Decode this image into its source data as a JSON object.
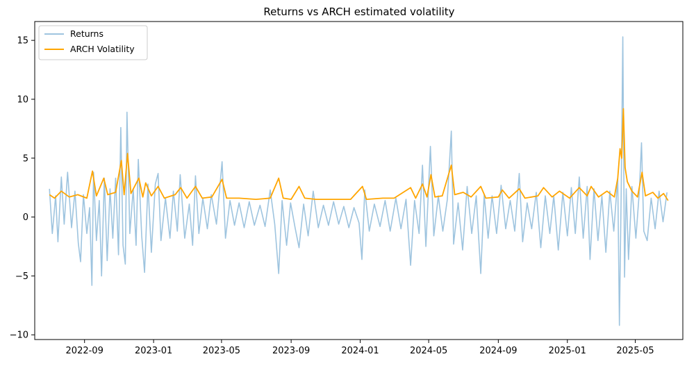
{
  "chart_data": {
    "type": "line",
    "title": "Returns vs ARCH estimated volatility",
    "xlabel": "",
    "ylabel": "",
    "x_range": [
      "2022-06-05",
      "2025-07-24"
    ],
    "ylim": [
      -10.4,
      16.6
    ],
    "grid": false,
    "legend_position": "top-left",
    "y_ticks": [
      -10,
      -5,
      0,
      5,
      10,
      15
    ],
    "x_ticks": [
      {
        "date": "2022-09-01",
        "label": "2022-09"
      },
      {
        "date": "2023-01-01",
        "label": "2023-01"
      },
      {
        "date": "2023-05-01",
        "label": "2023-05"
      },
      {
        "date": "2023-09-01",
        "label": "2023-09"
      },
      {
        "date": "2024-01-01",
        "label": "2024-01"
      },
      {
        "date": "2024-05-01",
        "label": "2024-05"
      },
      {
        "date": "2024-09-01",
        "label": "2024-09"
      },
      {
        "date": "2025-01-01",
        "label": "2025-01"
      },
      {
        "date": "2025-05-01",
        "label": "2025-05"
      }
    ],
    "series": [
      {
        "name": "Returns",
        "color": "#9ec4df",
        "points": [
          [
            "2022-07-01",
            2.4
          ],
          [
            "2022-07-06",
            -1.4
          ],
          [
            "2022-07-12",
            1.8
          ],
          [
            "2022-07-16",
            -2.1
          ],
          [
            "2022-07-22",
            3.4
          ],
          [
            "2022-07-27",
            -0.6
          ],
          [
            "2022-08-02",
            3.8
          ],
          [
            "2022-08-09",
            -0.9
          ],
          [
            "2022-08-15",
            2.2
          ],
          [
            "2022-08-21",
            -2.2
          ],
          [
            "2022-08-25",
            -3.8
          ],
          [
            "2022-08-30",
            1.9
          ],
          [
            "2022-09-05",
            -1.4
          ],
          [
            "2022-09-10",
            0.8
          ],
          [
            "2022-09-14",
            -5.8
          ],
          [
            "2022-09-17",
            3.8
          ],
          [
            "2022-09-22",
            -2.0
          ],
          [
            "2022-09-27",
            1.4
          ],
          [
            "2022-10-01",
            -5.0
          ],
          [
            "2022-10-06",
            3.3
          ],
          [
            "2022-10-11",
            -3.7
          ],
          [
            "2022-10-16",
            2.4
          ],
          [
            "2022-10-21",
            -1.8
          ],
          [
            "2022-10-26",
            3.3
          ],
          [
            "2022-10-31",
            -3.2
          ],
          [
            "2022-11-04",
            7.6
          ],
          [
            "2022-11-08",
            -2.4
          ],
          [
            "2022-11-12",
            -4.0
          ],
          [
            "2022-11-15",
            8.9
          ],
          [
            "2022-11-20",
            -1.4
          ],
          [
            "2022-11-26",
            2.4
          ],
          [
            "2022-12-01",
            -2.4
          ],
          [
            "2022-12-05",
            4.9
          ],
          [
            "2022-12-11",
            -1.6
          ],
          [
            "2022-12-16",
            -4.7
          ],
          [
            "2022-12-22",
            2.8
          ],
          [
            "2022-12-28",
            -3.0
          ],
          [
            "2023-01-04",
            2.8
          ],
          [
            "2023-01-09",
            3.7
          ],
          [
            "2023-01-14",
            -2.0
          ],
          [
            "2023-01-22",
            1.6
          ],
          [
            "2023-01-30",
            -1.8
          ],
          [
            "2023-02-05",
            2.2
          ],
          [
            "2023-02-12",
            -1.2
          ],
          [
            "2023-02-17",
            3.6
          ],
          [
            "2023-02-25",
            -1.8
          ],
          [
            "2023-03-05",
            1.1
          ],
          [
            "2023-03-11",
            -2.4
          ],
          [
            "2023-03-16",
            3.5
          ],
          [
            "2023-03-22",
            -1.4
          ],
          [
            "2023-03-29",
            1.6
          ],
          [
            "2023-04-06",
            -1.0
          ],
          [
            "2023-04-13",
            1.9
          ],
          [
            "2023-04-22",
            -0.6
          ],
          [
            "2023-05-02",
            4.7
          ],
          [
            "2023-05-08",
            -1.8
          ],
          [
            "2023-05-16",
            1.4
          ],
          [
            "2023-05-24",
            -0.7
          ],
          [
            "2023-06-01",
            1.2
          ],
          [
            "2023-06-10",
            -0.9
          ],
          [
            "2023-06-19",
            1.3
          ],
          [
            "2023-06-28",
            -0.7
          ],
          [
            "2023-07-08",
            1.0
          ],
          [
            "2023-07-17",
            -0.8
          ],
          [
            "2023-07-26",
            2.3
          ],
          [
            "2023-08-03",
            -0.6
          ],
          [
            "2023-08-10",
            -4.8
          ],
          [
            "2023-08-16",
            1.4
          ],
          [
            "2023-08-24",
            -2.4
          ],
          [
            "2023-08-31",
            1.2
          ],
          [
            "2023-09-08",
            -0.9
          ],
          [
            "2023-09-15",
            -2.6
          ],
          [
            "2023-09-23",
            1.1
          ],
          [
            "2023-10-01",
            -1.6
          ],
          [
            "2023-10-10",
            2.2
          ],
          [
            "2023-10-19",
            -0.9
          ],
          [
            "2023-10-28",
            1.0
          ],
          [
            "2023-11-06",
            -0.7
          ],
          [
            "2023-11-15",
            1.3
          ],
          [
            "2023-11-24",
            -0.6
          ],
          [
            "2023-12-03",
            0.9
          ],
          [
            "2023-12-12",
            -0.9
          ],
          [
            "2023-12-21",
            0.8
          ],
          [
            "2023-12-30",
            -0.5
          ],
          [
            "2024-01-04",
            -3.6
          ],
          [
            "2024-01-09",
            2.3
          ],
          [
            "2024-01-17",
            -1.2
          ],
          [
            "2024-01-26",
            1.1
          ],
          [
            "2024-02-05",
            -0.8
          ],
          [
            "2024-02-14",
            1.4
          ],
          [
            "2024-02-23",
            -1.2
          ],
          [
            "2024-03-04",
            1.6
          ],
          [
            "2024-03-13",
            -1.0
          ],
          [
            "2024-03-22",
            1.5
          ],
          [
            "2024-03-30",
            -4.1
          ],
          [
            "2024-04-06",
            1.4
          ],
          [
            "2024-04-14",
            -1.4
          ],
          [
            "2024-04-20",
            4.4
          ],
          [
            "2024-04-26",
            -2.5
          ],
          [
            "2024-05-04",
            6.0
          ],
          [
            "2024-05-10",
            -1.6
          ],
          [
            "2024-05-18",
            1.8
          ],
          [
            "2024-05-26",
            -1.2
          ],
          [
            "2024-06-03",
            1.5
          ],
          [
            "2024-06-10",
            7.3
          ],
          [
            "2024-06-14",
            -2.3
          ],
          [
            "2024-06-22",
            1.2
          ],
          [
            "2024-06-30",
            -2.8
          ],
          [
            "2024-07-08",
            2.6
          ],
          [
            "2024-07-16",
            -1.4
          ],
          [
            "2024-07-24",
            1.8
          ],
          [
            "2024-08-01",
            -4.8
          ],
          [
            "2024-08-07",
            1.9
          ],
          [
            "2024-08-14",
            -1.8
          ],
          [
            "2024-08-21",
            1.8
          ],
          [
            "2024-08-29",
            -1.4
          ],
          [
            "2024-09-06",
            2.7
          ],
          [
            "2024-09-14",
            -1.0
          ],
          [
            "2024-09-22",
            1.4
          ],
          [
            "2024-09-30",
            -1.2
          ],
          [
            "2024-10-08",
            3.7
          ],
          [
            "2024-10-14",
            -2.1
          ],
          [
            "2024-10-22",
            1.2
          ],
          [
            "2024-10-30",
            -1.0
          ],
          [
            "2024-11-07",
            2.1
          ],
          [
            "2024-11-15",
            -2.6
          ],
          [
            "2024-11-23",
            1.8
          ],
          [
            "2024-12-01",
            -1.4
          ],
          [
            "2024-12-08",
            1.8
          ],
          [
            "2024-12-16",
            -2.8
          ],
          [
            "2024-12-24",
            2.1
          ],
          [
            "2025-01-01",
            -1.6
          ],
          [
            "2025-01-08",
            2.5
          ],
          [
            "2025-01-15",
            -1.4
          ],
          [
            "2025-01-22",
            3.4
          ],
          [
            "2025-01-29",
            -1.8
          ],
          [
            "2025-02-05",
            2.6
          ],
          [
            "2025-02-10",
            -3.6
          ],
          [
            "2025-02-17",
            2.4
          ],
          [
            "2025-02-24",
            -2.0
          ],
          [
            "2025-03-03",
            1.8
          ],
          [
            "2025-03-10",
            -3.0
          ],
          [
            "2025-03-17",
            2.2
          ],
          [
            "2025-03-24",
            -1.2
          ],
          [
            "2025-03-31",
            3.3
          ],
          [
            "2025-04-03",
            -9.2
          ],
          [
            "2025-04-06",
            1.8
          ],
          [
            "2025-04-09",
            15.3
          ],
          [
            "2025-04-12",
            -5.1
          ],
          [
            "2025-04-15",
            2.4
          ],
          [
            "2025-04-19",
            -3.6
          ],
          [
            "2025-04-25",
            2.6
          ],
          [
            "2025-05-02",
            -1.8
          ],
          [
            "2025-05-08",
            2.1
          ],
          [
            "2025-05-12",
            6.3
          ],
          [
            "2025-05-16",
            -1.2
          ],
          [
            "2025-05-22",
            -2.0
          ],
          [
            "2025-05-29",
            1.6
          ],
          [
            "2025-06-05",
            -1.0
          ],
          [
            "2025-06-12",
            2.2
          ],
          [
            "2025-06-19",
            -0.4
          ],
          [
            "2025-06-26",
            2.1
          ]
        ]
      },
      {
        "name": "ARCH Volatility",
        "color": "#ffa500",
        "points": [
          [
            "2022-07-01",
            1.9
          ],
          [
            "2022-07-10",
            1.6
          ],
          [
            "2022-07-22",
            2.2
          ],
          [
            "2022-08-05",
            1.7
          ],
          [
            "2022-08-20",
            1.9
          ],
          [
            "2022-09-05",
            1.6
          ],
          [
            "2022-09-15",
            3.9
          ],
          [
            "2022-09-22",
            1.8
          ],
          [
            "2022-10-05",
            3.3
          ],
          [
            "2022-10-12",
            1.9
          ],
          [
            "2022-10-26",
            2.1
          ],
          [
            "2022-11-05",
            4.8
          ],
          [
            "2022-11-10",
            1.9
          ],
          [
            "2022-11-16",
            5.4
          ],
          [
            "2022-11-22",
            2.0
          ],
          [
            "2022-12-06",
            3.3
          ],
          [
            "2022-12-13",
            1.7
          ],
          [
            "2022-12-18",
            2.9
          ],
          [
            "2022-12-28",
            1.8
          ],
          [
            "2023-01-09",
            2.6
          ],
          [
            "2023-01-20",
            1.6
          ],
          [
            "2023-02-08",
            1.9
          ],
          [
            "2023-02-18",
            2.5
          ],
          [
            "2023-03-01",
            1.6
          ],
          [
            "2023-03-16",
            2.6
          ],
          [
            "2023-03-28",
            1.6
          ],
          [
            "2023-04-14",
            1.7
          ],
          [
            "2023-05-02",
            3.2
          ],
          [
            "2023-05-10",
            1.6
          ],
          [
            "2023-06-01",
            1.6
          ],
          [
            "2023-07-01",
            1.5
          ],
          [
            "2023-07-26",
            1.6
          ],
          [
            "2023-08-10",
            3.3
          ],
          [
            "2023-08-18",
            1.6
          ],
          [
            "2023-09-01",
            1.5
          ],
          [
            "2023-09-15",
            2.6
          ],
          [
            "2023-09-25",
            1.6
          ],
          [
            "2023-10-15",
            1.5
          ],
          [
            "2023-11-15",
            1.5
          ],
          [
            "2023-12-15",
            1.5
          ],
          [
            "2024-01-05",
            2.6
          ],
          [
            "2024-01-12",
            1.5
          ],
          [
            "2024-02-10",
            1.6
          ],
          [
            "2024-03-01",
            1.6
          ],
          [
            "2024-03-30",
            2.5
          ],
          [
            "2024-04-08",
            1.6
          ],
          [
            "2024-04-20",
            2.8
          ],
          [
            "2024-04-28",
            1.7
          ],
          [
            "2024-05-05",
            3.6
          ],
          [
            "2024-05-12",
            1.7
          ],
          [
            "2024-05-25",
            1.8
          ],
          [
            "2024-06-10",
            4.4
          ],
          [
            "2024-06-16",
            1.9
          ],
          [
            "2024-07-01",
            2.1
          ],
          [
            "2024-07-15",
            1.7
          ],
          [
            "2024-08-01",
            2.6
          ],
          [
            "2024-08-10",
            1.6
          ],
          [
            "2024-09-01",
            1.7
          ],
          [
            "2024-09-08",
            2.3
          ],
          [
            "2024-09-20",
            1.6
          ],
          [
            "2024-10-08",
            2.4
          ],
          [
            "2024-10-18",
            1.6
          ],
          [
            "2024-11-10",
            1.8
          ],
          [
            "2024-11-20",
            2.5
          ],
          [
            "2024-12-05",
            1.7
          ],
          [
            "2024-12-18",
            2.2
          ],
          [
            "2025-01-05",
            1.6
          ],
          [
            "2025-01-22",
            2.5
          ],
          [
            "2025-02-05",
            1.8
          ],
          [
            "2025-02-12",
            2.6
          ],
          [
            "2025-02-25",
            1.7
          ],
          [
            "2025-03-12",
            2.2
          ],
          [
            "2025-03-25",
            1.7
          ],
          [
            "2025-03-31",
            3.3
          ],
          [
            "2025-04-04",
            5.8
          ],
          [
            "2025-04-07",
            5.0
          ],
          [
            "2025-04-10",
            9.2
          ],
          [
            "2025-04-13",
            4.2
          ],
          [
            "2025-04-17",
            3.0
          ],
          [
            "2025-04-25",
            2.2
          ],
          [
            "2025-05-05",
            1.7
          ],
          [
            "2025-05-13",
            3.8
          ],
          [
            "2025-05-19",
            1.8
          ],
          [
            "2025-06-01",
            2.1
          ],
          [
            "2025-06-10",
            1.6
          ],
          [
            "2025-06-20",
            2.0
          ],
          [
            "2025-06-28",
            1.4
          ]
        ]
      }
    ]
  }
}
